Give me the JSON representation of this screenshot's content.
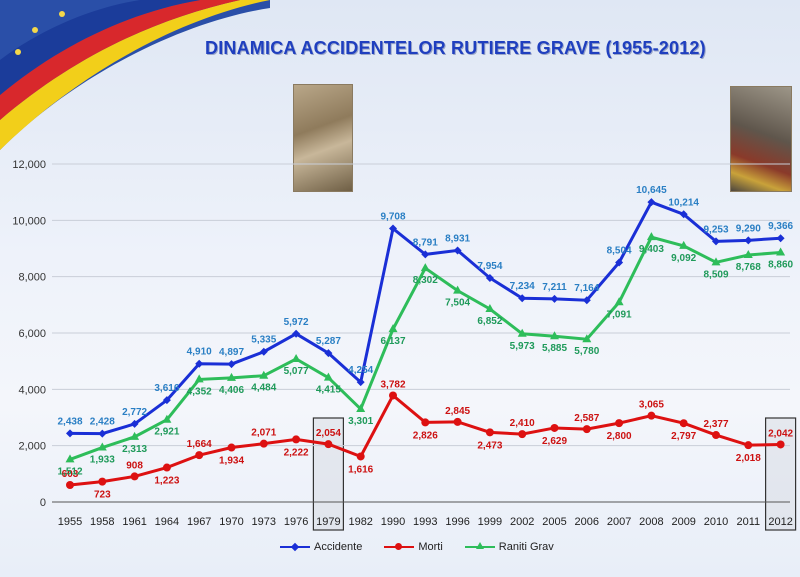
{
  "title": "DINAMICA ACCIDENTELOR RUTIERE GRAVE  (1955-2012)",
  "chart_data": {
    "type": "line",
    "title": "DINAMICA ACCIDENTELOR RUTIERE GRAVE  (1955-2012)",
    "categories": [
      "1955",
      "1958",
      "1961",
      "1964",
      "1967",
      "1970",
      "1973",
      "1976",
      "1979",
      "1982",
      "1990",
      "1993",
      "1996",
      "1999",
      "2002",
      "2005",
      "2006",
      "2007",
      "2008",
      "2009",
      "2010",
      "2011",
      "2012"
    ],
    "y_ticks": [
      "0",
      "2,000",
      "4,000",
      "6,000",
      "8,000",
      "10,000",
      "12,000"
    ],
    "ylim": [
      0,
      12000
    ],
    "grid": true,
    "legend_position": "bottom",
    "highlighted_categories": [
      "1979",
      "2012"
    ],
    "series": [
      {
        "name": "Accidente",
        "color": "#1a2fd6",
        "label_color": "#2a7fc4",
        "values": [
          2438,
          2428,
          2772,
          3616,
          4910,
          4897,
          5335,
          5972,
          5287,
          4254,
          9708,
          8791,
          8931,
          7954,
          7234,
          7211,
          7164,
          8504,
          10645,
          10214,
          9253,
          9290,
          9366
        ],
        "labels": [
          "2,438",
          "2,428",
          "2,772",
          "3,616",
          "4,910",
          "4,897",
          "5,335",
          "5,972",
          "5,287",
          "4,254",
          "9,708",
          "8,791",
          "8,931",
          "7,954",
          "7,234",
          "7,211",
          "7,164",
          "8,504",
          "10,645",
          "10,214",
          "9,253",
          "9,290",
          "9,366"
        ]
      },
      {
        "name": "Morti",
        "color": "#dd1111",
        "label_color": "#cc1111",
        "values": [
          603,
          723,
          908,
          1223,
          1664,
          1934,
          2071,
          2222,
          2054,
          1616,
          3782,
          2826,
          2845,
          2473,
          2410,
          2629,
          2587,
          2800,
          3065,
          2797,
          2377,
          2018,
          2042
        ],
        "labels": [
          "603",
          "723",
          "908",
          "1,223",
          "1,664",
          "1,934",
          "2,071",
          "2,222",
          "2,054",
          "1,616",
          "3,782",
          "2,826",
          "2,845",
          "2,473",
          "2,410",
          "2,629",
          "2,587",
          "2,800",
          "3,065",
          "2,797",
          "2,377",
          "2,018",
          "2,042"
        ]
      },
      {
        "name": "Raniti Grav",
        "color": "#2ebd5a",
        "label_color": "#1f9a5a",
        "values": [
          1512,
          1933,
          2313,
          2921,
          4352,
          4406,
          4484,
          5077,
          4415,
          3301,
          6137,
          8302,
          7504,
          6852,
          5973,
          5885,
          5780,
          7091,
          9403,
          9092,
          8509,
          8768,
          8860
        ],
        "labels": [
          "1,512",
          "1,933",
          "2,313",
          "2,921",
          "4,352",
          "4,406",
          "4,484",
          "5,077",
          "4,415",
          "3,301",
          "6,137",
          "8,302",
          "7,504",
          "6,852",
          "5,973",
          "5,885",
          "5,780",
          "7,091",
          "9,403",
          "9,092",
          "8,509",
          "8,768",
          "8,860"
        ]
      }
    ]
  }
}
